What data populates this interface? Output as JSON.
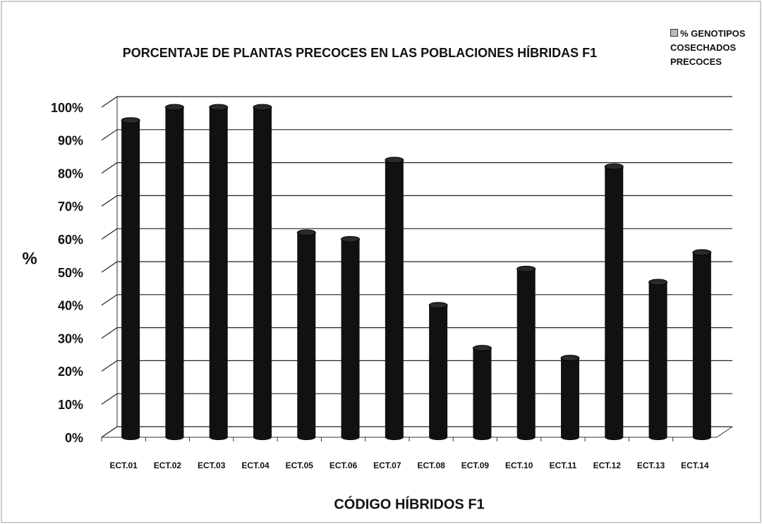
{
  "chart_data": {
    "type": "bar",
    "title": "PORCENTAJE DE PLANTAS PRECOCES  EN LAS POBLACIONES HÍBRIDAS F1",
    "x_label": "CÓDIGO HÍBRIDOS F1",
    "y_label": "%",
    "categories": [
      "ECT.01",
      "ECT.02",
      "ECT.03",
      "ECT.04",
      "ECT.05",
      "ECT.06",
      "ECT.07",
      "ECT.08",
      "ECT.09",
      "ECT.10",
      "ECT.11",
      "ECT.12",
      "ECT.13",
      "ECT.14"
    ],
    "series": [
      {
        "name": "% GENOTIPOS COSECHADOS PRECOCES",
        "color": "#111111",
        "values": [
          96,
          100,
          100,
          100,
          62,
          60,
          84,
          40,
          27,
          51,
          24,
          82,
          47,
          56
        ]
      }
    ],
    "ylim": [
      0,
      100
    ],
    "yticks": [
      {
        "value": 0,
        "label": "0%"
      },
      {
        "value": 10,
        "label": "10%"
      },
      {
        "value": 20,
        "label": "20%"
      },
      {
        "value": 30,
        "label": "30%"
      },
      {
        "value": 40,
        "label": "40%"
      },
      {
        "value": 50,
        "label": "50%"
      },
      {
        "value": 60,
        "label": "60%"
      },
      {
        "value": 70,
        "label": "70%"
      },
      {
        "value": 80,
        "label": "80%"
      },
      {
        "value": 90,
        "label": "90%"
      },
      {
        "value": 100,
        "label": "100%"
      }
    ],
    "grid": true,
    "legend": "top-right"
  }
}
